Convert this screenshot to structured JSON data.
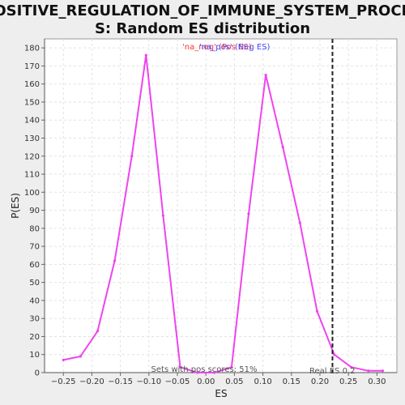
{
  "chart_data": {
    "type": "line",
    "title_lines": [
      "POSITIVE_REGULATION_OF_IMMUNE_SYSTEM_PROCES",
      "S: Random ES distribution"
    ],
    "xlabel": "ES",
    "ylabel": "P(ES)",
    "xlim": [
      -0.283,
      0.335
    ],
    "ylim": [
      0,
      185
    ],
    "x_ticks": [
      -0.25,
      -0.2,
      -0.15,
      -0.1,
      -0.05,
      0.0,
      0.05,
      0.1,
      0.15,
      0.2,
      0.25,
      0.3
    ],
    "x_tick_labels": [
      "−0.25",
      "−0.20",
      "−0.15",
      "−0.10",
      "−0.05",
      "0.00",
      "0.05",
      "0.10",
      "0.15",
      "0.20",
      "0.25",
      "0.30"
    ],
    "y_ticks": [
      0,
      10,
      20,
      30,
      40,
      50,
      60,
      70,
      80,
      90,
      100,
      110,
      120,
      130,
      140,
      150,
      160,
      170,
      180
    ],
    "grid": true,
    "legend": [
      {
        "label": "'na_neg' (Pos ES)",
        "color": "#ff3333"
      },
      {
        "label": "'na_pos' (Neg ES)",
        "color": "#4444ff"
      }
    ],
    "series": [
      {
        "color": "#ee44ee",
        "x": [
          -0.25,
          -0.22,
          -0.19,
          -0.16,
          -0.13,
          -0.105,
          -0.075,
          -0.045,
          -0.015,
          0.015,
          0.045,
          0.075,
          0.105,
          0.135,
          0.165,
          0.195,
          0.225,
          0.255,
          0.285,
          0.31
        ],
        "y": [
          7,
          9,
          23,
          62,
          120,
          176,
          87,
          3,
          0,
          0,
          3,
          88,
          165,
          125,
          83,
          34,
          10,
          3,
          1,
          1
        ]
      }
    ],
    "real_es": 0.222,
    "real_es_label": "Real ES 0.2",
    "annotation": "Sets with pos scores: 51%"
  }
}
